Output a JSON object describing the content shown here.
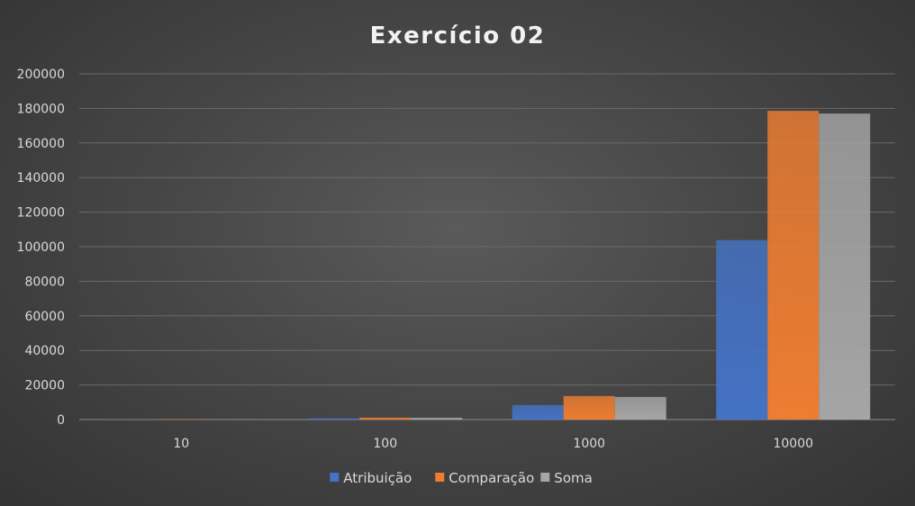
{
  "chart_data": {
    "type": "bar",
    "title": "Exercício 02",
    "xlabel": "",
    "ylabel": "",
    "categories": [
      "10",
      "100",
      "1000",
      "10000"
    ],
    "series": [
      {
        "name": "Atribuição",
        "color": "#4472c4",
        "values": [
          90,
          700,
          8400,
          103800
        ]
      },
      {
        "name": "Comparação",
        "color": "#ed7d31",
        "values": [
          140,
          1100,
          13600,
          178600
        ]
      },
      {
        "name": "Soma",
        "color": "#a5a5a5",
        "values": [
          130,
          1050,
          13100,
          177000
        ]
      }
    ],
    "ylim": [
      0,
      200000
    ],
    "yticks": [
      "0",
      "20000",
      "40000",
      "60000",
      "80000",
      "100000",
      "120000",
      "140000",
      "160000",
      "180000",
      "200000"
    ],
    "grid": true,
    "legend_position": "bottom"
  }
}
